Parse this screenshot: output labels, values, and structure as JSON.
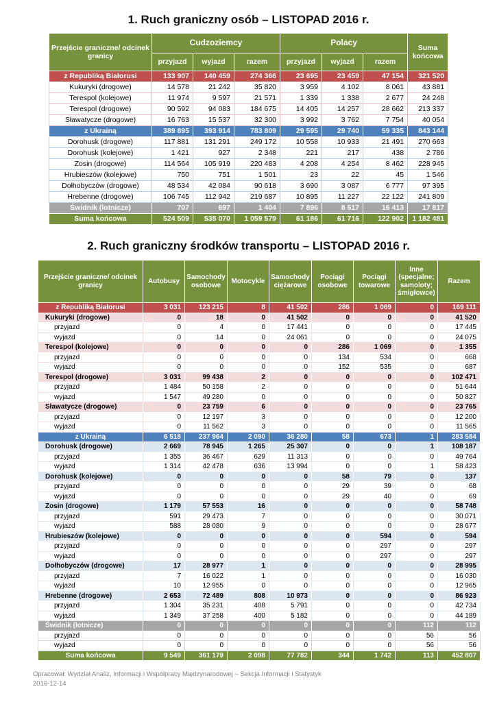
{
  "colors": {
    "header_green": "#76923C",
    "section_red": "#C0504D",
    "section_blue": "#4F81BD",
    "section_gray": "#A6A6A6",
    "light_pink": "#F2DCDB",
    "light_blue": "#DCE6F1"
  },
  "table1": {
    "title": "1. Ruch graniczny osób – LISTOPAD 2016 r.",
    "header": {
      "crossing": "Przejście graniczne/ odcinek granicy",
      "foreigners": "Cudzoziemcy",
      "poles": "Polacy",
      "arrival": "przyjazd",
      "departure": "wyjazd",
      "total": "razem",
      "grand_total": "Suma końcowa"
    },
    "rows": [
      {
        "label": "z Republiką Białorusi",
        "style": "red",
        "values": [
          "133 907",
          "140 459",
          "274 366",
          "23 695",
          "23 459",
          "47 154",
          "321 520"
        ]
      },
      {
        "label": "Kukuryki (drogowe)",
        "style": "pink",
        "values": [
          "14 578",
          "21 242",
          "35 820",
          "3 959",
          "4 102",
          "8 061",
          "43 881"
        ]
      },
      {
        "label": "Terespol (kolejowe)",
        "style": "pink",
        "values": [
          "11 974",
          "9 597",
          "21 571",
          "1 339",
          "1 338",
          "2 677",
          "24 248"
        ]
      },
      {
        "label": "Terespol (drogowe)",
        "style": "pink",
        "values": [
          "90 592",
          "94 083",
          "184 675",
          "14 405",
          "14 257",
          "28 662",
          "213 337"
        ]
      },
      {
        "label": "Sławatycze (drogowe)",
        "style": "pink",
        "values": [
          "16 763",
          "15 537",
          "32 300",
          "3 992",
          "3 762",
          "7 754",
          "40 054"
        ]
      },
      {
        "label": "z Ukrainą",
        "style": "blue",
        "values": [
          "389 895",
          "393 914",
          "783 809",
          "29 595",
          "29 740",
          "59 335",
          "843 144"
        ]
      },
      {
        "label": "Dorohusk (drogowe)",
        "style": "bluedata",
        "values": [
          "117 881",
          "131 291",
          "249 172",
          "10 558",
          "10 933",
          "21 491",
          "270 663"
        ]
      },
      {
        "label": "Dorohusk (kolejowe)",
        "style": "bluedata",
        "values": [
          "1 421",
          "927",
          "2 348",
          "221",
          "217",
          "438",
          "2 786"
        ]
      },
      {
        "label": "Zosin (drogowe)",
        "style": "bluedata",
        "values": [
          "114 564",
          "105 919",
          "220 483",
          "4 208",
          "4 254",
          "8 462",
          "228 945"
        ]
      },
      {
        "label": "Hrubieszów (kolejowe)",
        "style": "bluedata",
        "values": [
          "750",
          "751",
          "1 501",
          "23",
          "22",
          "45",
          "1 546"
        ]
      },
      {
        "label": "Dołhobyczów (drogowe)",
        "style": "bluedata",
        "values": [
          "48 534",
          "42 084",
          "90 618",
          "3 690",
          "3 087",
          "6 777",
          "97 395"
        ]
      },
      {
        "label": "Hrebenne (drogowe)",
        "style": "bluedata",
        "values": [
          "106 745",
          "112 942",
          "219 687",
          "10 895",
          "11 227",
          "22 122",
          "241 809"
        ]
      },
      {
        "label": "Świdnik (lotnicze)",
        "style": "gray",
        "values": [
          "707",
          "697",
          "1 404",
          "7 896",
          "8 517",
          "16 413",
          "17 817"
        ]
      },
      {
        "label": "Suma końcowa",
        "style": "green",
        "values": [
          "524 509",
          "535 070",
          "1 059 579",
          "61 186",
          "61 716",
          "122 902",
          "1 182 481"
        ]
      }
    ]
  },
  "table2": {
    "title": "2. Ruch graniczny środków transportu – LISTOPAD 2016 r.",
    "columns": [
      "Przejście graniczne/ odcinek granicy",
      "Autobusy",
      "Samochody osobowe",
      "Motocykle",
      "Samochody ciężarowe",
      "Pociągi osobowe",
      "Pociągi towarowe",
      "Inne (specjalne; samoloty; śmigłowce)",
      "Razem"
    ],
    "rows": [
      {
        "label": "z Republiką Białorusi",
        "style": "red",
        "values": [
          "3 031",
          "123 215",
          "8",
          "41 502",
          "286",
          "1 069",
          "0",
          "169 111"
        ]
      },
      {
        "label": "Kukuryki (drogowe)",
        "style": "boldpink",
        "values": [
          "0",
          "18",
          "0",
          "41 502",
          "0",
          "0",
          "0",
          "41 520"
        ]
      },
      {
        "label": "przyjazd",
        "style": "subpink",
        "values": [
          "0",
          "4",
          "0",
          "17 441",
          "0",
          "0",
          "0",
          "17 445"
        ]
      },
      {
        "label": "wyjazd",
        "style": "subpink",
        "values": [
          "0",
          "14",
          "0",
          "24 061",
          "0",
          "0",
          "0",
          "24 075"
        ]
      },
      {
        "label": "Terespol (kolejowe)",
        "style": "boldpink",
        "values": [
          "0",
          "0",
          "0",
          "0",
          "286",
          "1 069",
          "0",
          "1 355"
        ]
      },
      {
        "label": "przyjazd",
        "style": "subpink",
        "values": [
          "0",
          "0",
          "0",
          "0",
          "134",
          "534",
          "0",
          "668"
        ]
      },
      {
        "label": "wyjazd",
        "style": "subpink",
        "values": [
          "0",
          "0",
          "0",
          "0",
          "152",
          "535",
          "0",
          "687"
        ]
      },
      {
        "label": "Terespol (drogowe)",
        "style": "boldpink",
        "values": [
          "3 031",
          "99 438",
          "2",
          "0",
          "0",
          "0",
          "0",
          "102 471"
        ]
      },
      {
        "label": "przyjazd",
        "style": "subpink",
        "values": [
          "1 484",
          "50 158",
          "2",
          "0",
          "0",
          "0",
          "0",
          "51 644"
        ]
      },
      {
        "label": "wyjazd",
        "style": "subpink",
        "values": [
          "1 547",
          "49 280",
          "0",
          "0",
          "0",
          "0",
          "0",
          "50 827"
        ]
      },
      {
        "label": "Sławatycze (drogowe)",
        "style": "boldpink",
        "values": [
          "0",
          "23 759",
          "6",
          "0",
          "0",
          "0",
          "0",
          "23 765"
        ]
      },
      {
        "label": "przyjazd",
        "style": "subpink",
        "values": [
          "0",
          "12 197",
          "3",
          "0",
          "0",
          "0",
          "0",
          "12 200"
        ]
      },
      {
        "label": "wyjazd",
        "style": "subpink",
        "values": [
          "0",
          "11 562",
          "3",
          "0",
          "0",
          "0",
          "0",
          "11 565"
        ]
      },
      {
        "label": "z Ukrainą",
        "style": "blue",
        "values": [
          "6 518",
          "237 964",
          "2 090",
          "36 280",
          "58",
          "673",
          "1",
          "283 584"
        ]
      },
      {
        "label": "Dorohusk (drogowe)",
        "style": "boldblue",
        "values": [
          "2 669",
          "78 945",
          "1 265",
          "25 307",
          "0",
          "0",
          "1",
          "108 187"
        ]
      },
      {
        "label": "przyjazd",
        "style": "subblue",
        "values": [
          "1 355",
          "36 467",
          "629",
          "11 313",
          "0",
          "0",
          "0",
          "49 764"
        ]
      },
      {
        "label": "wyjazd",
        "style": "subblue",
        "values": [
          "1 314",
          "42 478",
          "636",
          "13 994",
          "0",
          "0",
          "1",
          "58 423"
        ]
      },
      {
        "label": "Dorohusk (kolejowe)",
        "style": "boldblue",
        "values": [
          "0",
          "0",
          "0",
          "0",
          "58",
          "79",
          "0",
          "137"
        ]
      },
      {
        "label": "przyjazd",
        "style": "subblue",
        "values": [
          "0",
          "0",
          "0",
          "0",
          "29",
          "39",
          "0",
          "68"
        ]
      },
      {
        "label": "wyjazd",
        "style": "subblue",
        "values": [
          "0",
          "0",
          "0",
          "0",
          "29",
          "40",
          "0",
          "69"
        ]
      },
      {
        "label": "Zosin (drogowe)",
        "style": "boldblue",
        "values": [
          "1 179",
          "57 553",
          "16",
          "0",
          "0",
          "0",
          "0",
          "58 748"
        ]
      },
      {
        "label": "przyjazd",
        "style": "subblue",
        "values": [
          "591",
          "29 473",
          "7",
          "0",
          "0",
          "0",
          "0",
          "30 071"
        ]
      },
      {
        "label": "wyjazd",
        "style": "subblue",
        "values": [
          "588",
          "28 080",
          "9",
          "0",
          "0",
          "0",
          "0",
          "28 677"
        ]
      },
      {
        "label": "Hrubieszów (kolejowe)",
        "style": "boldblue",
        "values": [
          "0",
          "0",
          "0",
          "0",
          "0",
          "594",
          "0",
          "594"
        ]
      },
      {
        "label": "przyjazd",
        "style": "subblue",
        "values": [
          "0",
          "0",
          "0",
          "0",
          "0",
          "297",
          "0",
          "297"
        ]
      },
      {
        "label": "wyjazd",
        "style": "subblue",
        "values": [
          "0",
          "0",
          "0",
          "0",
          "0",
          "297",
          "0",
          "297"
        ]
      },
      {
        "label": "Dołhobyczów (drogowe)",
        "style": "boldblue",
        "values": [
          "17",
          "28 977",
          "1",
          "0",
          "0",
          "0",
          "0",
          "28 995"
        ]
      },
      {
        "label": "przyjazd",
        "style": "subblue",
        "values": [
          "7",
          "16 022",
          "1",
          "0",
          "0",
          "0",
          "0",
          "16 030"
        ]
      },
      {
        "label": "wyjazd",
        "style": "subblue",
        "values": [
          "10",
          "12 955",
          "0",
          "0",
          "0",
          "0",
          "0",
          "12 965"
        ]
      },
      {
        "label": "Hrebenne (drogowe)",
        "style": "boldblue",
        "values": [
          "2 653",
          "72 489",
          "808",
          "10 973",
          "0",
          "0",
          "0",
          "86 923"
        ]
      },
      {
        "label": "przyjazd",
        "style": "subblue",
        "values": [
          "1 304",
          "35 231",
          "408",
          "5 791",
          "0",
          "0",
          "0",
          "42 734"
        ]
      },
      {
        "label": "wyjazd",
        "style": "subblue",
        "values": [
          "1 349",
          "37 258",
          "400",
          "5 182",
          "0",
          "0",
          "0",
          "44 189"
        ]
      },
      {
        "label": "Świdnik (lotnicze)",
        "style": "gray",
        "values": [
          "0",
          "0",
          "0",
          "0",
          "0",
          "0",
          "112",
          "112"
        ]
      },
      {
        "label": "przyjazd",
        "style": "subgray",
        "values": [
          "0",
          "0",
          "0",
          "0",
          "0",
          "0",
          "56",
          "56"
        ]
      },
      {
        "label": "wyjazd",
        "style": "subgray",
        "values": [
          "0",
          "0",
          "0",
          "0",
          "0",
          "0",
          "56",
          "56"
        ]
      },
      {
        "label": "Suma końcowa",
        "style": "green",
        "values": [
          "9 549",
          "361 179",
          "2 098",
          "77 782",
          "344",
          "1 742",
          "113",
          "452 807"
        ]
      }
    ]
  },
  "footer": {
    "line1": "Opracował: Wydział Analiz, Informacji i Współpracy Międzynarodowej – Sekcja Informacji i Statystyk",
    "line2": "2016-12-14"
  }
}
